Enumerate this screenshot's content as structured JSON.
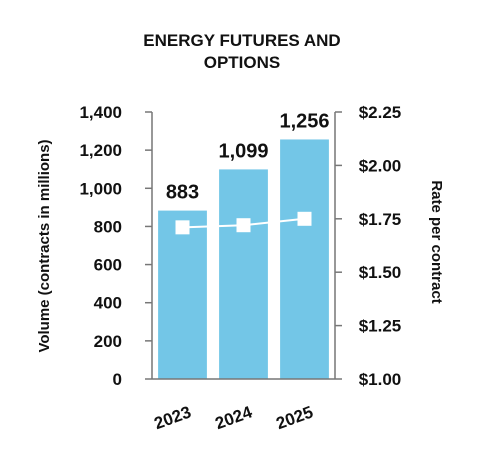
{
  "chart_data": {
    "type": "bar",
    "title_lines": [
      "ENERGY FUTURES AND",
      "OPTIONS"
    ],
    "categories": [
      "2023",
      "2024",
      "2025"
    ],
    "series": [
      {
        "name": "Volume",
        "axis": "left",
        "type": "bar",
        "values": [
          883,
          1099,
          1256
        ],
        "labels": [
          "883",
          "1,099",
          "1,256"
        ],
        "color": "#73C6E7"
      },
      {
        "name": "Rate per contract",
        "axis": "right",
        "type": "line",
        "values": [
          1.71,
          1.72,
          1.75
        ],
        "color": "#ffffff"
      }
    ],
    "ylabel": "Volume (contracts in millions)",
    "y2label": "Rate per contract",
    "ylim": [
      0,
      1400
    ],
    "y2lim": [
      1.0,
      2.25
    ],
    "yticks": [
      "1,400",
      "1,200",
      "1,000",
      "800",
      "600",
      "400",
      "200",
      "0"
    ],
    "yticks_values": [
      1400,
      1200,
      1000,
      800,
      600,
      400,
      200,
      0
    ],
    "y2ticks": [
      "$2.25",
      "$2.00",
      "$1.75",
      "$1.50",
      "$1.25",
      "$1.00"
    ],
    "y2ticks_values": [
      2.25,
      2.0,
      1.75,
      1.5,
      1.25,
      1.0
    ],
    "grid": false,
    "legend": "none"
  }
}
